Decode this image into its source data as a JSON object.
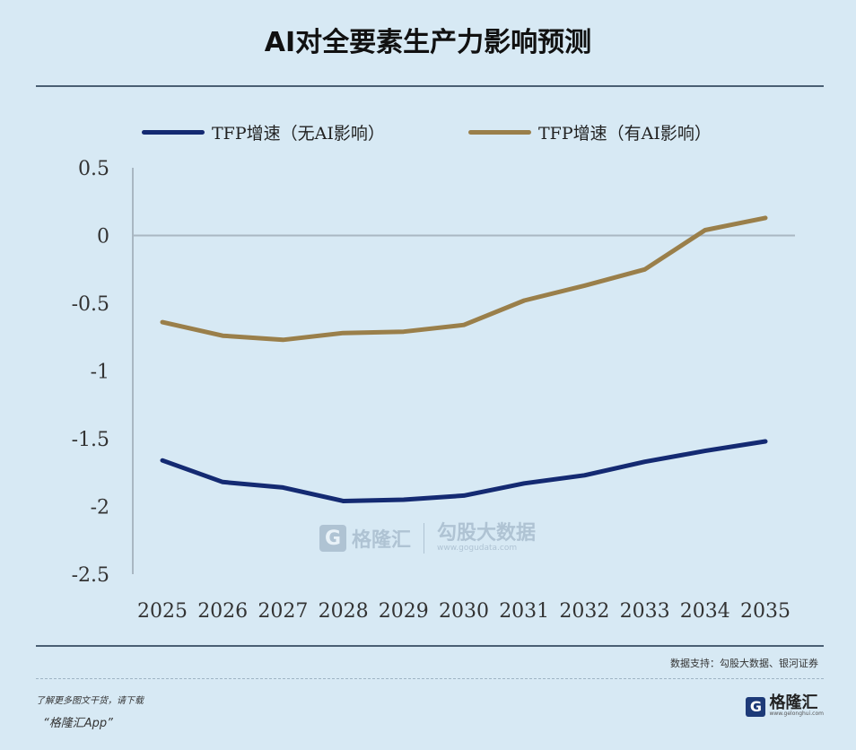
{
  "title": "AI对全要素生产力影响预测",
  "source": "数据支持：勾股大数据、银河证券",
  "footer": {
    "note": "了解更多图文干货，请下载",
    "app": "“格隆汇App”"
  },
  "logo": {
    "mark": "G",
    "name": "格隆汇",
    "sub": "www.gelonghui.com"
  },
  "watermark": {
    "mark": "G",
    "name": "格隆汇",
    "name2": "勾股大数据",
    "url": "www.gogudata.com"
  },
  "colors": {
    "background": "#d7e9f4",
    "series1": "#142a72",
    "series2": "#9a7f4a",
    "axis": "#a9b7c2"
  },
  "chart_data": {
    "type": "line",
    "title": "AI对全要素生产力影响预测",
    "x": [
      "2025",
      "2026",
      "2027",
      "2028",
      "2029",
      "2030",
      "2031",
      "2032",
      "2033",
      "2034",
      "2035"
    ],
    "series": [
      {
        "name": "TFP增速（无AI影响）",
        "values": [
          -1.66,
          -1.82,
          -1.86,
          -1.96,
          -1.95,
          -1.92,
          -1.83,
          -1.77,
          -1.67,
          -1.59,
          -1.52
        ]
      },
      {
        "name": "TFP增速（有AI影响）",
        "values": [
          -0.64,
          -0.74,
          -0.77,
          -0.72,
          -0.71,
          -0.66,
          -0.48,
          -0.37,
          -0.25,
          0.04,
          0.13
        ]
      }
    ],
    "yticks": [
      "0.5",
      "0",
      "-0.5",
      "-1",
      "-1.5",
      "-2",
      "-2.5"
    ],
    "ylim": [
      -2.5,
      0.5
    ],
    "legend": "top",
    "grid": false
  }
}
